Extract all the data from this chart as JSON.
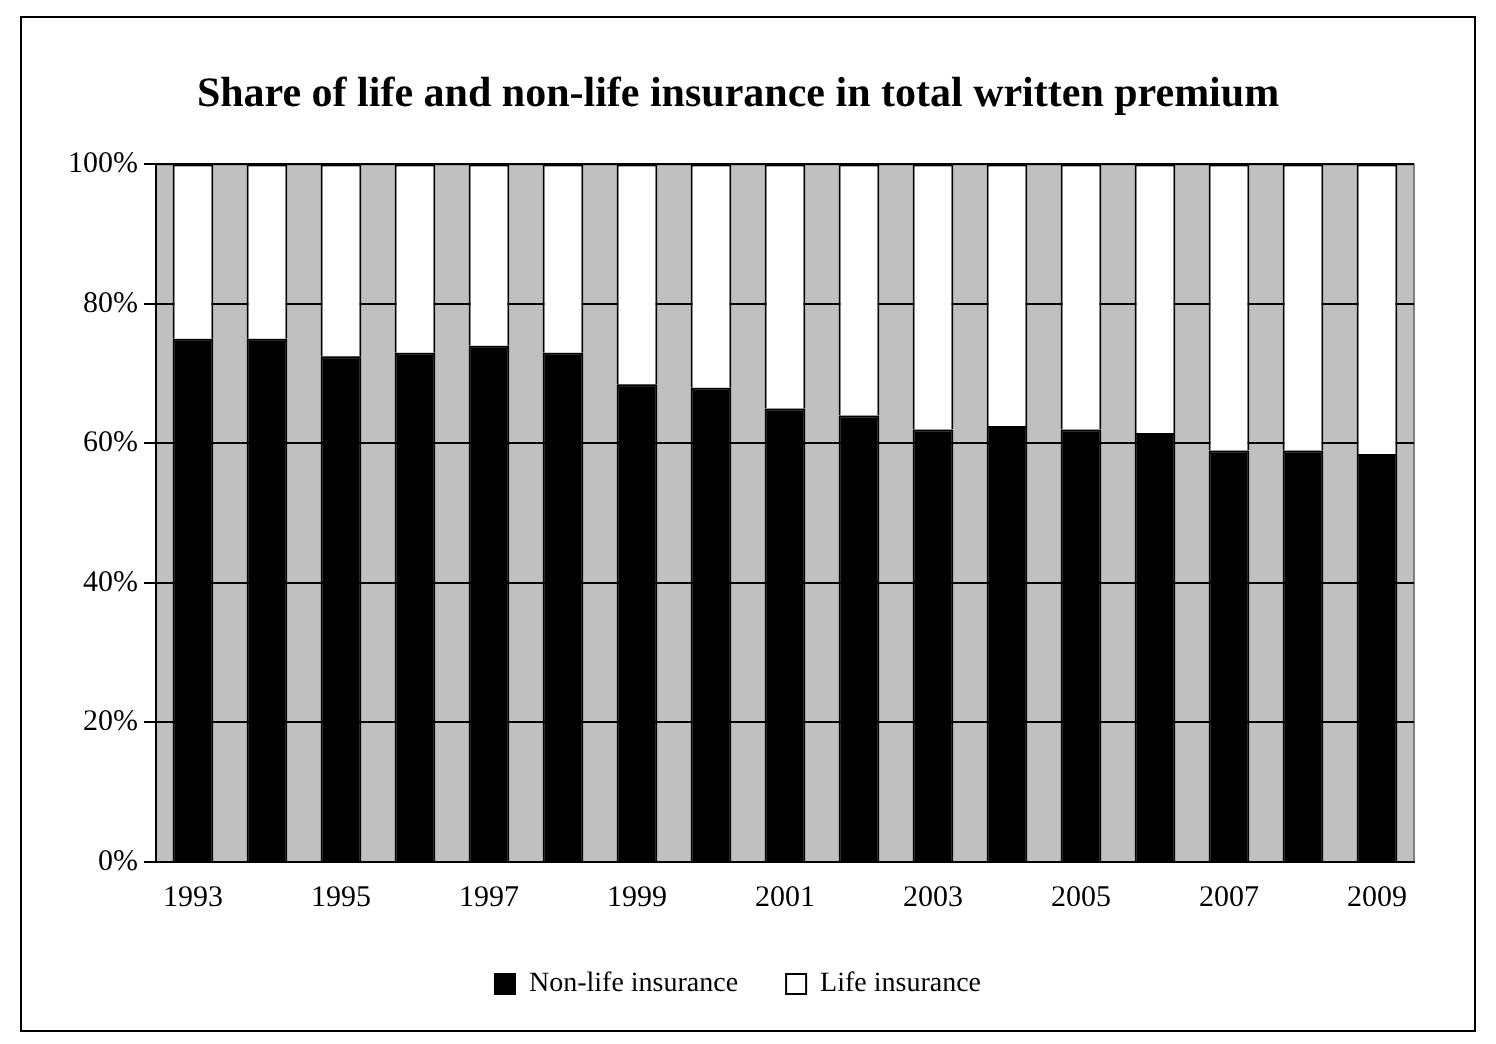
{
  "chart_data": {
    "type": "bar",
    "title": "Share of life and non-life insurance in total written premium",
    "categories": [
      "1993",
      null,
      "1995",
      null,
      "1997",
      null,
      "1999",
      null,
      "2001",
      null,
      "2003",
      null,
      "2005",
      null,
      "2007",
      null,
      "2009"
    ],
    "series": [
      {
        "name": "Non-life insurance",
        "color": "#000000",
        "values": [
          75,
          75,
          72.5,
          73,
          74,
          73,
          68.5,
          68,
          65,
          64,
          62,
          62.5,
          62,
          61.5,
          59,
          59,
          58.5
        ]
      },
      {
        "name": "Life insurance",
        "color": "#ffffff",
        "values": [
          25,
          25,
          27.5,
          27,
          26,
          27,
          31.5,
          32,
          35,
          36,
          38,
          37.5,
          38,
          38.5,
          41,
          41,
          41.5
        ]
      }
    ],
    "stacked": true,
    "ylim": [
      0,
      100
    ],
    "yticks": [
      {
        "value": 0,
        "label": "0%"
      },
      {
        "value": 20,
        "label": "20%"
      },
      {
        "value": 40,
        "label": "40%"
      },
      {
        "value": 60,
        "label": "60%"
      },
      {
        "value": 80,
        "label": "80%"
      },
      {
        "value": 100,
        "label": "100%"
      }
    ],
    "grid": "y",
    "legend": "bottom"
  }
}
